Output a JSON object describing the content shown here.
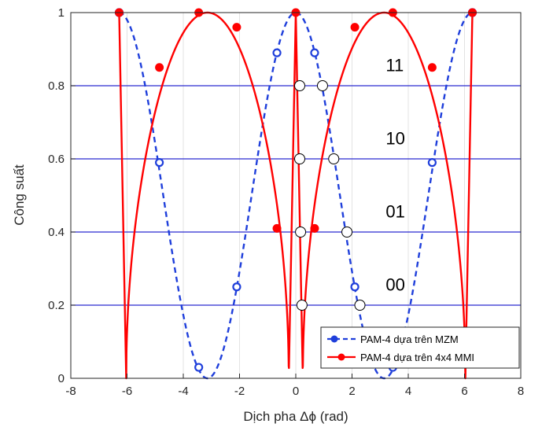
{
  "chart_data": {
    "type": "line",
    "xlabel": "Dịch pha Δϕ (rad)",
    "ylabel": "Công suất",
    "xlim": [
      -8,
      8
    ],
    "ylim": [
      0,
      1
    ],
    "x_ticks": [
      "-8",
      "-6",
      "-4",
      "-2",
      "0",
      "2",
      "4",
      "6",
      "8"
    ],
    "y_ticks": [
      "0",
      "0.2",
      "0.4",
      "0.6",
      "0.8",
      "1"
    ],
    "grid": true,
    "legend_position": "bottom-right",
    "threshold_lines": [
      0.2,
      0.4,
      0.6,
      0.8
    ],
    "level_labels": [
      {
        "text": "11",
        "x": 3.2,
        "y": 0.84
      },
      {
        "text": "10",
        "x": 3.2,
        "y": 0.64
      },
      {
        "text": "01",
        "x": 3.2,
        "y": 0.44
      },
      {
        "text": "00",
        "x": 3.2,
        "y": 0.24
      }
    ],
    "series": [
      {
        "name": "PAM-4 dựa trên MZM",
        "color": "#1f3fdb",
        "line_style": "dashed",
        "function": "cos2_half",
        "x_range": [
          -6.3,
          6.3
        ],
        "markers": [
          {
            "x": -6.28,
            "y": 1.0
          },
          {
            "x": -4.85,
            "y": 0.59
          },
          {
            "x": -3.45,
            "y": 0.03
          },
          {
            "x": -2.1,
            "y": 0.25
          },
          {
            "x": -0.67,
            "y": 0.89
          },
          {
            "x": 0.67,
            "y": 0.89
          },
          {
            "x": 2.1,
            "y": 0.25
          },
          {
            "x": 3.45,
            "y": 0.03
          },
          {
            "x": 4.85,
            "y": 0.59
          },
          {
            "x": 6.28,
            "y": 1.0
          }
        ]
      },
      {
        "name": "PAM-4 dựa trên 4x4 MMI",
        "color": "#ff0000",
        "line_style": "solid",
        "function": "arc_lobes",
        "x_range": [
          -6.3,
          6.3
        ],
        "markers": [
          {
            "x": -6.28,
            "y": 1.0
          },
          {
            "x": -4.85,
            "y": 0.85
          },
          {
            "x": -3.45,
            "y": 1.0
          },
          {
            "x": -2.1,
            "y": 0.96
          },
          {
            "x": -0.67,
            "y": 0.41
          },
          {
            "x": 0.0,
            "y": 1.0
          },
          {
            "x": 0.67,
            "y": 0.41
          },
          {
            "x": 2.1,
            "y": 0.96
          },
          {
            "x": 3.45,
            "y": 1.0
          },
          {
            "x": 4.85,
            "y": 0.85
          },
          {
            "x": 6.28,
            "y": 1.0
          }
        ]
      },
      {
        "name": "",
        "color": "#ffffff",
        "line_style": "none",
        "markers": [
          {
            "x": 0.14,
            "y": 0.8
          },
          {
            "x": 0.95,
            "y": 0.8
          },
          {
            "x": 0.14,
            "y": 0.6
          },
          {
            "x": 1.35,
            "y": 0.6
          },
          {
            "x": 0.17,
            "y": 0.4
          },
          {
            "x": 1.82,
            "y": 0.4
          },
          {
            "x": 0.22,
            "y": 0.2
          },
          {
            "x": 2.28,
            "y": 0.2
          }
        ]
      }
    ]
  }
}
